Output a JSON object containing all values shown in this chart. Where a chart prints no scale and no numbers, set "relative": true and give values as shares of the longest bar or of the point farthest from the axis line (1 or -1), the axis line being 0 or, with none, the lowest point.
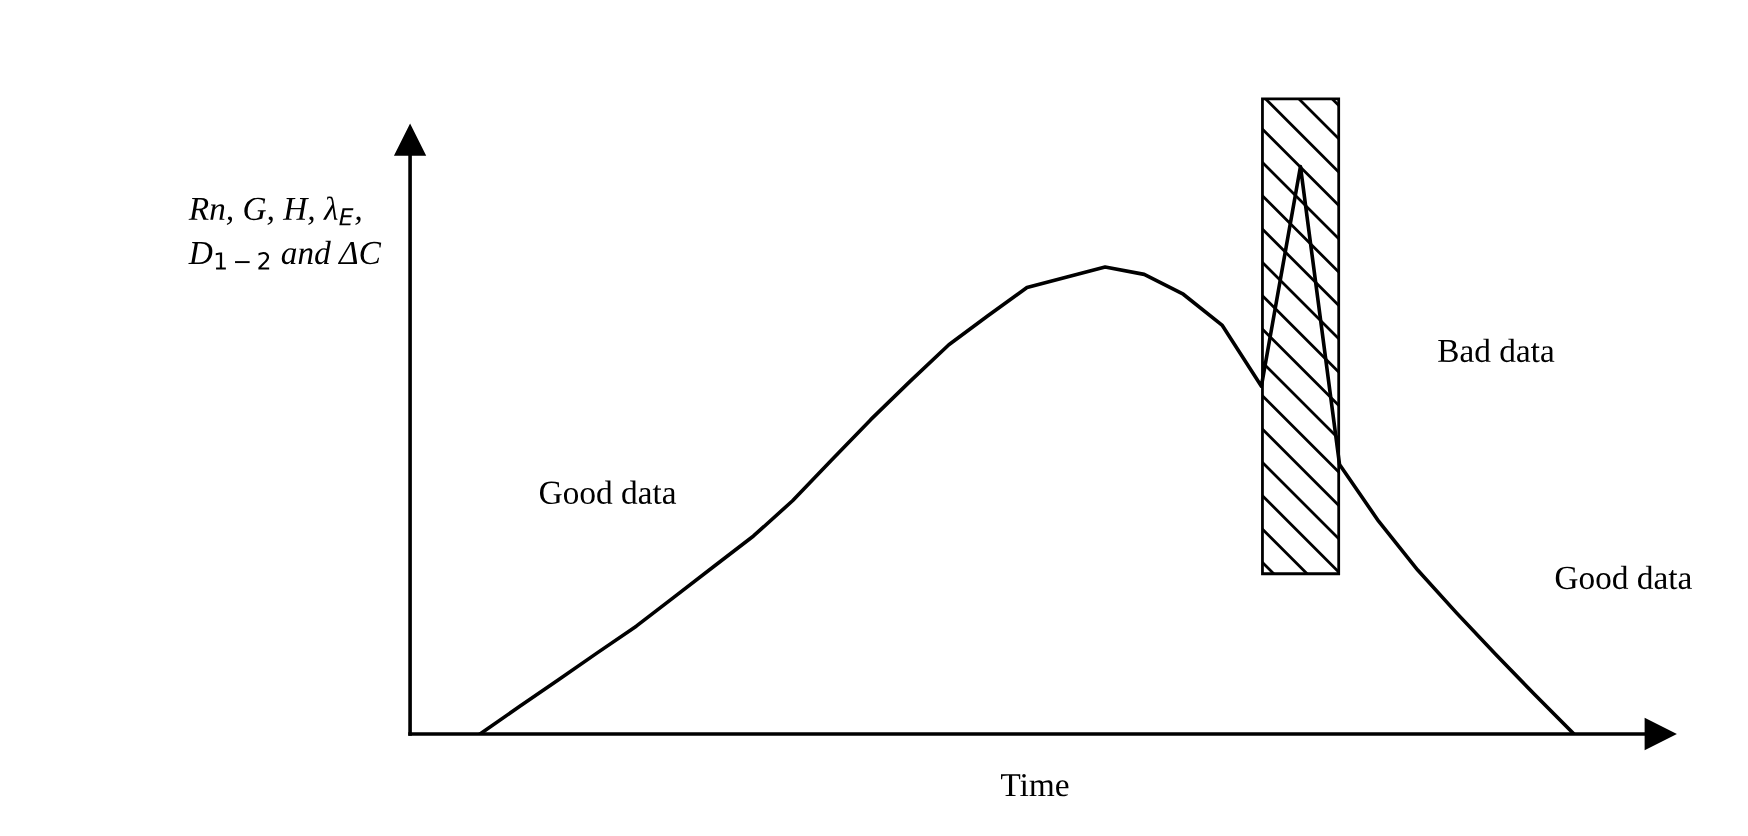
{
  "chart_data": {
    "type": "line",
    "relative": true,
    "xlabel": "Time",
    "ylabel": "Rn, G, H, λ$_{E}$,\nD$_{1−2}$ and ΔC",
    "categories": [
      null,
      null,
      null,
      null,
      null,
      null,
      null,
      null,
      null,
      null,
      null,
      null,
      null,
      null,
      null,
      null,
      null,
      null,
      null,
      null,
      null,
      null,
      null,
      null,
      null,
      null,
      null,
      null,
      null
    ],
    "series": [
      {
        "color": "#000000",
        "values": [
          0,
          0.048,
          0.095,
          0.143,
          0.19,
          0.243,
          0.296,
          0.349,
          0.411,
          0.483,
          0.554,
          0.621,
          0.686,
          0.737,
          0.787,
          0.805,
          0.823,
          0.81,
          0.775,
          0.72,
          0.613,
          1.0,
          0.475,
          0.375,
          0.289,
          0.213,
          0.14,
          0.069,
          0
        ]
      }
    ],
    "annotations": [
      "Good data",
      "Good data",
      "Bad data"
    ],
    "grid": false,
    "legend": false,
    "tick_labels": false,
    "marker": "none",
    "line_style": "solid"
  }
}
